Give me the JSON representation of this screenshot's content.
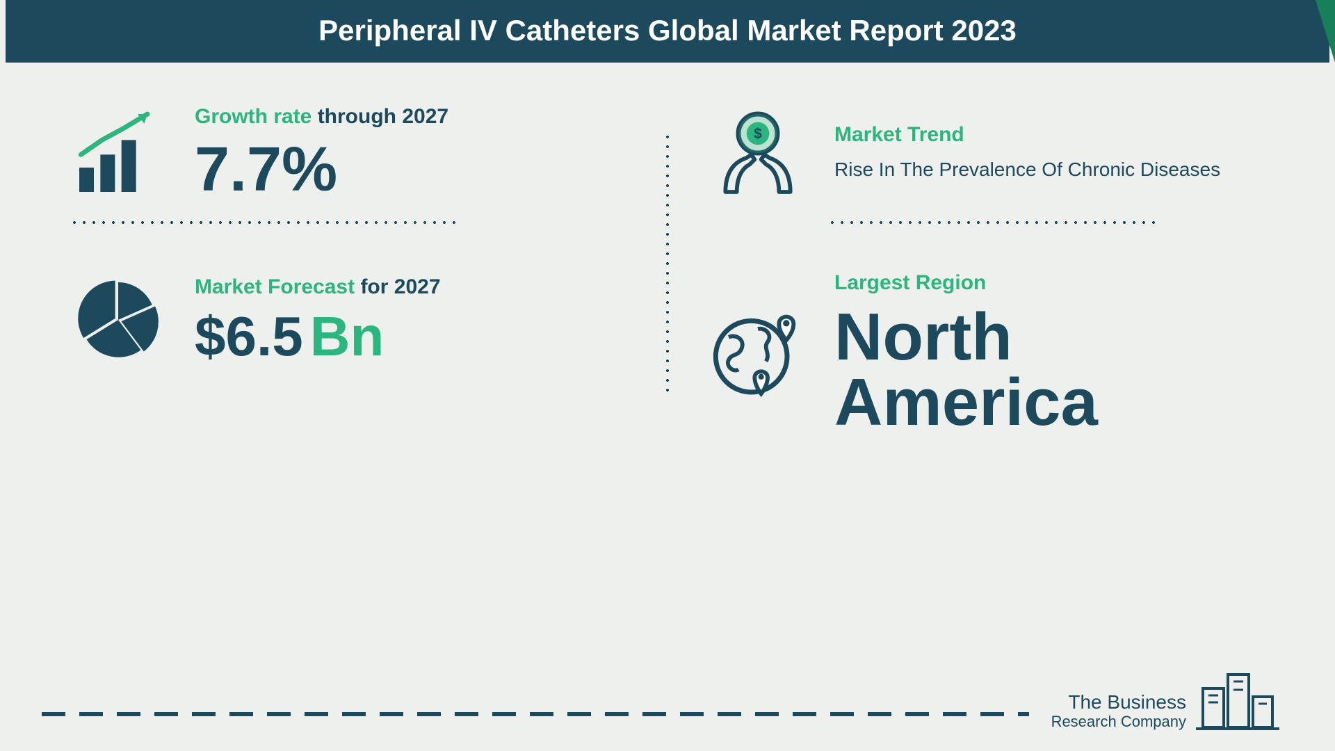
{
  "colors": {
    "header_bg": "#1c4a5c",
    "header_text": "#ffffff",
    "page_bg": "#eef0ee",
    "accent_green": "#2ab67e",
    "dark_teal": "#1c4a5c",
    "divider": "#1c4a5c"
  },
  "header": {
    "title": "Peripheral IV Catheters Global Market Report 2023",
    "fontsize": 42,
    "weight": 700
  },
  "layout": {
    "grid_columns": 2,
    "grid_rows": 2,
    "has_vertical_divider": true,
    "has_horizontal_dotted_dividers": true,
    "has_bottom_dashed_rule": true
  },
  "cells": {
    "growth": {
      "label_accent": "Growth rate",
      "label_rest": " through 2027",
      "value": "7.7%",
      "value_fontsize": 90,
      "icon": "growth-chart-icon"
    },
    "trend": {
      "label": "Market Trend",
      "description": "Rise In The Prevalence Of Chronic Diseases",
      "desc_fontsize": 28,
      "icon": "hands-coin-icon"
    },
    "forecast": {
      "label_accent": "Market Forecast",
      "label_rest": " for 2027",
      "value": "$6.5",
      "unit": "Bn",
      "value_fontsize": 80,
      "icon": "pie-chart-icon"
    },
    "region": {
      "label": "Largest Region",
      "value": "North America",
      "value_fontsize": 96,
      "icon": "globe-pins-icon"
    }
  },
  "logo": {
    "line1": "The Business",
    "line2": "Research Company",
    "icon": "buildings-icon"
  }
}
